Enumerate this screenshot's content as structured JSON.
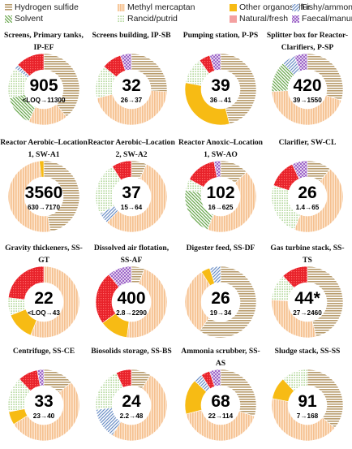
{
  "colors": {
    "hydrogen_sulfide": "#b79b6c",
    "methyl_mercaptan": "#f5c08f",
    "other_organosulfur": "#f7bb14",
    "fishy_ammonia": "#6b8fc6",
    "solvent": "#6aa84f",
    "rancid_putrid": "#a7d18b",
    "natural_fresh": "#f4a0a0",
    "faecal_manure": "#9a5fc6",
    "red_extra": "#e8222a"
  },
  "legend": [
    {
      "key": "hydrogen_sulfide",
      "label": "Hydrogen sulfide",
      "pattern": "hstripe"
    },
    {
      "key": "methyl_mercaptan",
      "label": "Methyl mercaptan",
      "pattern": "vstripe"
    },
    {
      "key": "other_organosulfur",
      "label": "Other organosulfur",
      "pattern": "solid"
    },
    {
      "key": "fishy_ammonia",
      "label": "Fishy/ammonia",
      "pattern": "diag"
    },
    {
      "key": "solvent",
      "label": "Solvent",
      "pattern": "diag2"
    },
    {
      "key": "rancid_putrid",
      "label": "Rancid/putrid",
      "pattern": "dots"
    },
    {
      "key": "natural_fresh",
      "label": "Natural/fresh",
      "pattern": "solid"
    },
    {
      "key": "faecal_manure",
      "label": "Faecal/manure",
      "pattern": "cross"
    }
  ],
  "chart_data": [
    {
      "type": "pie",
      "title_line1": "Screens, Primary tanks,",
      "title_line2": "IP-EF",
      "center_value": "905",
      "range": "<LOQ→11300",
      "slices": [
        {
          "key": "hydrogen_sulfide",
          "value": 39
        },
        {
          "key": "methyl_mercaptan",
          "value": 18
        },
        {
          "key": "solvent",
          "value": 14
        },
        {
          "key": "rancid_putrid",
          "value": 14
        },
        {
          "key": "fishy_ammonia",
          "value": 2
        },
        {
          "key": "red_extra",
          "value": 13
        }
      ]
    },
    {
      "type": "pie",
      "title_line1": "Screens building, IP-SB",
      "title_line2": "",
      "center_value": "32",
      "range": "26→37",
      "slices": [
        {
          "key": "hydrogen_sulfide",
          "value": 26
        },
        {
          "key": "methyl_mercaptan",
          "value": 45
        },
        {
          "key": "rancid_putrid",
          "value": 15
        },
        {
          "key": "red_extra",
          "value": 9
        },
        {
          "key": "faecal_manure",
          "value": 5
        }
      ]
    },
    {
      "type": "pie",
      "title_line1": "Pumping station, P-PS",
      "title_line2": "",
      "center_value": "39",
      "range": "36→41",
      "slices": [
        {
          "key": "hydrogen_sulfide",
          "value": 46
        },
        {
          "key": "other_organosulfur",
          "value": 32
        },
        {
          "key": "rancid_putrid",
          "value": 12
        },
        {
          "key": "red_extra",
          "value": 5
        },
        {
          "key": "faecal_manure",
          "value": 5
        }
      ]
    },
    {
      "type": "pie",
      "title_line1": "Splitter box for Reactor-",
      "title_line2": "Clarifiers, P-SP",
      "center_value": "420",
      "range": "39→1550",
      "slices": [
        {
          "key": "hydrogen_sulfide",
          "value": 30
        },
        {
          "key": "methyl_mercaptan",
          "value": 44
        },
        {
          "key": "solvent",
          "value": 14
        },
        {
          "key": "fishy_ammonia",
          "value": 6
        },
        {
          "key": "faecal_manure",
          "value": 6
        }
      ]
    },
    {
      "type": "pie",
      "title_line1": "Reactor Aerobic–Location",
      "title_line2": "1, SW-A1",
      "center_value": "3560",
      "range": "630→7170",
      "slices": [
        {
          "key": "hydrogen_sulfide",
          "value": 47
        },
        {
          "key": "methyl_mercaptan",
          "value": 51
        },
        {
          "key": "other_organosulfur",
          "value": 2
        }
      ]
    },
    {
      "type": "pie",
      "title_line1": "Reactor Aerobic–Location",
      "title_line2": "2, SW-A2",
      "center_value": "37",
      "range": "15→64",
      "slices": [
        {
          "key": "hydrogen_sulfide",
          "value": 7
        },
        {
          "key": "methyl_mercaptan",
          "value": 55
        },
        {
          "key": "fishy_ammonia",
          "value": 5
        },
        {
          "key": "rancid_putrid",
          "value": 24
        },
        {
          "key": "red_extra",
          "value": 9
        }
      ]
    },
    {
      "type": "pie",
      "title_line1": "Reactor Anoxic–Location",
      "title_line2": "1, SW-AO",
      "center_value": "102",
      "range": "16→625",
      "slices": [
        {
          "key": "hydrogen_sulfide",
          "value": 13
        },
        {
          "key": "methyl_mercaptan",
          "value": 43
        },
        {
          "key": "solvent",
          "value": 22
        },
        {
          "key": "rancid_putrid",
          "value": 5
        },
        {
          "key": "red_extra",
          "value": 14
        },
        {
          "key": "faecal_manure",
          "value": 3
        }
      ]
    },
    {
      "type": "pie",
      "title_line1": "Clarifier, SW-CL",
      "title_line2": "",
      "center_value": "26",
      "range": "1.4→65",
      "slices": [
        {
          "key": "hydrogen_sulfide",
          "value": 11
        },
        {
          "key": "methyl_mercaptan",
          "value": 45
        },
        {
          "key": "rancid_putrid",
          "value": 24
        },
        {
          "key": "red_extra",
          "value": 13
        },
        {
          "key": "faecal_manure",
          "value": 7
        }
      ]
    },
    {
      "type": "pie",
      "title_line1": "Gravity thickeners, SS-",
      "title_line2": "GT",
      "center_value": "22",
      "range": "<LOQ→43",
      "slices": [
        {
          "key": "methyl_mercaptan",
          "value": 56
        },
        {
          "key": "other_organosulfur",
          "value": 13
        },
        {
          "key": "rancid_putrid",
          "value": 8
        },
        {
          "key": "red_extra",
          "value": 23
        }
      ]
    },
    {
      "type": "pie",
      "title_line1": "Dissolved air flotation,",
      "title_line2": "SS-AF",
      "center_value": "400",
      "range": "2.8→2290",
      "slices": [
        {
          "key": "hydrogen_sulfide",
          "value": 6
        },
        {
          "key": "methyl_mercaptan",
          "value": 46
        },
        {
          "key": "other_organosulfur",
          "value": 13
        },
        {
          "key": "red_extra",
          "value": 24
        },
        {
          "key": "faecal_manure",
          "value": 11
        }
      ]
    },
    {
      "type": "pie",
      "title_line1": "Digester feed, SS-DF",
      "title_line2": "",
      "center_value": "26",
      "range": "19→34",
      "slices": [
        {
          "key": "hydrogen_sulfide",
          "value": 60
        },
        {
          "key": "methyl_mercaptan",
          "value": 31
        },
        {
          "key": "other_organosulfur",
          "value": 4
        },
        {
          "key": "fishy_ammonia",
          "value": 5
        }
      ]
    },
    {
      "type": "pie",
      "title_line1": "Gas turbine stack, SS-",
      "title_line2": "TS",
      "center_value": "44*",
      "range": "27→2460",
      "slices": [
        {
          "key": "hydrogen_sulfide",
          "value": 46
        },
        {
          "key": "methyl_mercaptan",
          "value": 30
        },
        {
          "key": "rancid_putrid",
          "value": 12
        },
        {
          "key": "red_extra",
          "value": 12
        }
      ]
    },
    {
      "type": "pie",
      "title_line1": "Centrifuge, SS-CE",
      "title_line2": "",
      "center_value": "33",
      "range": "23→40",
      "slices": [
        {
          "key": "hydrogen_sulfide",
          "value": 14
        },
        {
          "key": "methyl_mercaptan",
          "value": 52
        },
        {
          "key": "other_organosulfur",
          "value": 6
        },
        {
          "key": "rancid_putrid",
          "value": 16
        },
        {
          "key": "red_extra",
          "value": 9
        },
        {
          "key": "faecal_manure",
          "value": 3
        }
      ]
    },
    {
      "type": "pie",
      "title_line1": "Biosolids storage, SS-BS",
      "title_line2": "",
      "center_value": "24",
      "range": "2.2→48",
      "slices": [
        {
          "key": "hydrogen_sulfide",
          "value": 9
        },
        {
          "key": "methyl_mercaptan",
          "value": 50
        },
        {
          "key": "fishy_ammonia",
          "value": 14
        },
        {
          "key": "rancid_putrid",
          "value": 20
        },
        {
          "key": "red_extra",
          "value": 7
        }
      ]
    },
    {
      "type": "pie",
      "title_line1": "Ammonia scrubber, SS-",
      "title_line2": "AS",
      "center_value": "68",
      "range": "22→114",
      "slices": [
        {
          "key": "hydrogen_sulfide",
          "value": 30
        },
        {
          "key": "methyl_mercaptan",
          "value": 41
        },
        {
          "key": "other_organosulfur",
          "value": 16
        },
        {
          "key": "fishy_ammonia",
          "value": 4
        },
        {
          "key": "red_extra",
          "value": 4
        },
        {
          "key": "faecal_manure",
          "value": 5
        }
      ]
    },
    {
      "type": "pie",
      "title_line1": "Sludge stack, SS-SS",
      "title_line2": "",
      "center_value": "91",
      "range": "7→168",
      "slices": [
        {
          "key": "hydrogen_sulfide",
          "value": 36
        },
        {
          "key": "methyl_mercaptan",
          "value": 42
        },
        {
          "key": "other_organosulfur",
          "value": 10
        },
        {
          "key": "rancid_putrid",
          "value": 12
        }
      ]
    }
  ]
}
